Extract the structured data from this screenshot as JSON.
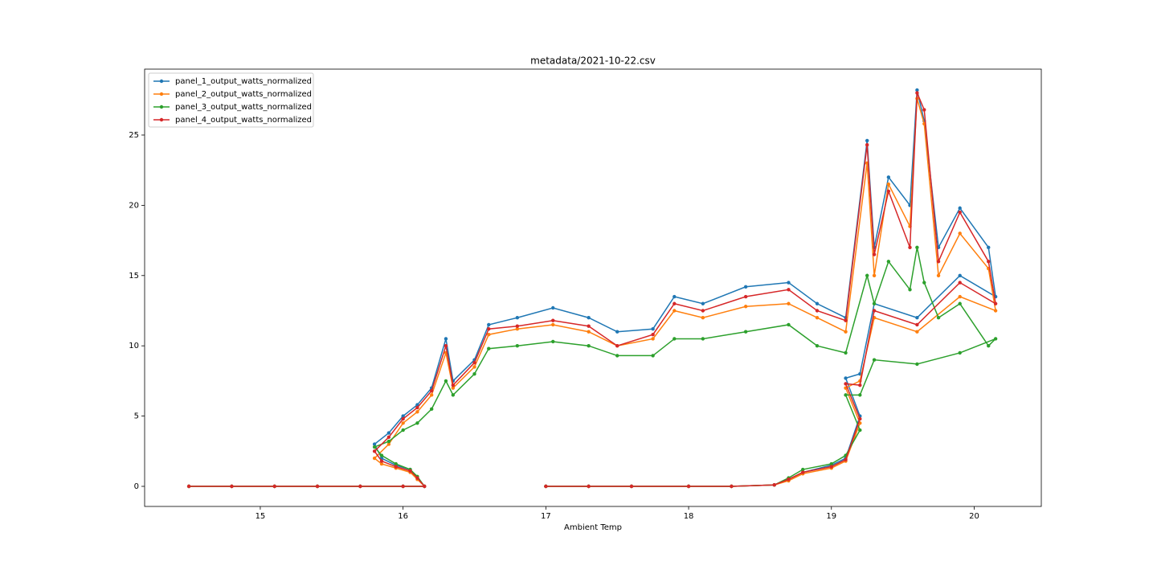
{
  "chart_data": {
    "type": "line",
    "title": "metadata/2021-10-22.csv",
    "x_label": "Ambient Temp",
    "x": [
      14.5,
      14.8,
      15.1,
      15.4,
      15.7,
      16.0,
      16.15,
      16.1,
      16.05,
      15.95,
      15.85,
      15.8,
      15.9,
      16.0,
      16.1,
      16.2,
      16.3,
      16.35,
      16.5,
      16.6,
      16.8,
      17.05,
      17.3,
      17.5,
      17.75,
      17.9,
      18.1,
      18.4,
      18.7,
      18.9,
      19.1,
      19.25,
      19.3,
      19.4,
      19.55,
      19.6,
      19.65,
      19.75,
      19.9,
      20.1,
      20.15,
      19.9,
      19.6,
      19.3,
      19.2,
      19.1,
      19.2,
      19.1,
      19.0,
      18.8,
      18.7,
      18.6,
      18.3,
      18.0,
      17.6,
      17.3,
      17.0
    ],
    "series": [
      {
        "name": "panel_1_output_watts_normalized",
        "color": "#1f77b4",
        "values": [
          0,
          0,
          0,
          0,
          0,
          0,
          0,
          0.6,
          1.2,
          1.5,
          2.0,
          3.0,
          3.8,
          5.0,
          5.8,
          7.0,
          10.5,
          7.5,
          9.0,
          11.5,
          12.0,
          12.7,
          12.0,
          11.0,
          11.2,
          13.5,
          13.0,
          14.2,
          14.5,
          13.0,
          12.0,
          24.6,
          17.0,
          22.0,
          20.0,
          28.2,
          26.0,
          17.0,
          19.8,
          17.0,
          13.5,
          15.0,
          12.0,
          13.0,
          8.0,
          7.7,
          5.0,
          2.0,
          1.5,
          1.0,
          0.5,
          0.1,
          0,
          0,
          0,
          0,
          0
        ]
      },
      {
        "name": "panel_2_output_watts_normalized",
        "color": "#ff7f0e",
        "values": [
          0,
          0,
          0,
          0,
          0,
          0,
          0,
          0.5,
          1.0,
          1.3,
          1.6,
          2.0,
          3.0,
          4.5,
          5.3,
          6.5,
          9.5,
          7.0,
          8.5,
          10.8,
          11.2,
          11.5,
          11.0,
          10.0,
          10.5,
          12.5,
          12.0,
          12.8,
          13.0,
          12.0,
          11.0,
          23.0,
          15.0,
          21.5,
          18.5,
          27.6,
          25.8,
          15.0,
          18.0,
          15.5,
          12.5,
          13.5,
          11.0,
          12.0,
          7.5,
          7.0,
          4.5,
          1.8,
          1.3,
          0.9,
          0.4,
          0.1,
          0,
          0,
          0,
          0,
          0
        ]
      },
      {
        "name": "panel_3_output_watts_normalized",
        "color": "#2ca02c",
        "values": [
          0,
          0,
          0,
          0,
          0,
          0,
          0,
          0.7,
          1.2,
          1.6,
          2.2,
          2.8,
          3.2,
          4.0,
          4.5,
          5.5,
          7.5,
          6.5,
          8.0,
          9.8,
          10.0,
          10.3,
          10.0,
          9.3,
          9.3,
          10.5,
          10.5,
          11.0,
          11.5,
          10.0,
          9.5,
          15.0,
          13.0,
          16.0,
          14.0,
          17.0,
          14.5,
          12.0,
          13.0,
          10.0,
          10.5,
          9.5,
          8.7,
          9.0,
          6.5,
          6.5,
          4.0,
          2.2,
          1.6,
          1.2,
          0.6,
          0.1,
          0,
          0,
          0,
          0,
          0
        ]
      },
      {
        "name": "panel_4_output_watts_normalized",
        "color": "#d62728",
        "values": [
          0,
          0,
          0,
          0,
          0,
          0,
          0,
          0.6,
          1.1,
          1.4,
          1.8,
          2.5,
          3.5,
          4.8,
          5.6,
          6.8,
          10.0,
          7.2,
          8.8,
          11.2,
          11.4,
          11.8,
          11.4,
          10.0,
          10.8,
          13.0,
          12.5,
          13.5,
          14.0,
          12.5,
          11.8,
          24.3,
          16.5,
          21.0,
          17.0,
          28.0,
          26.8,
          16.0,
          19.5,
          16.0,
          13.0,
          14.5,
          11.5,
          12.5,
          7.2,
          7.3,
          4.8,
          1.9,
          1.4,
          1.0,
          0.5,
          0.1,
          0,
          0,
          0,
          0,
          0
        ]
      }
    ],
    "xlim": [
      14.19,
      20.47
    ],
    "ylim": [
      -1.43,
      29.69
    ],
    "xticks": [
      15,
      16,
      17,
      18,
      19,
      20
    ],
    "yticks": [
      0,
      5,
      10,
      15,
      20,
      25
    ],
    "legend": "upper left",
    "grid": false
  }
}
